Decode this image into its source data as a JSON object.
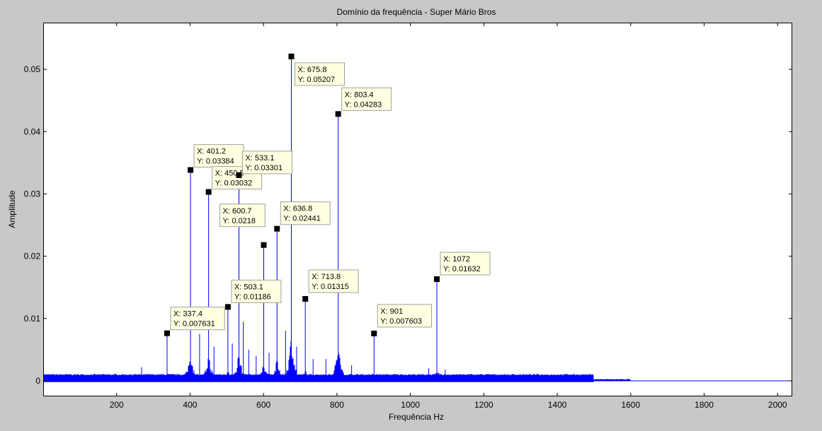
{
  "chart_data": {
    "type": "line",
    "title": "Domínio da frequência - Super Mário Bros",
    "xlabel": "Frequência Hz",
    "ylabel": "Amplitude",
    "xlim": [
      0,
      2040
    ],
    "ylim": [
      -0.0025,
      0.0575
    ],
    "x_ticks": [
      200,
      400,
      600,
      800,
      1000,
      1200,
      1400,
      1600,
      1800,
      2000
    ],
    "y_ticks": [
      0,
      0.01,
      0.02,
      0.03,
      0.04,
      0.05
    ],
    "y_tick_labels": [
      "0",
      "0.01",
      "0.02",
      "0.03",
      "0.04",
      "0.05"
    ],
    "grid": false,
    "series_color": "#0000ff",
    "background_color": "#ffffff",
    "figure_color": "#c8c8c8",
    "datatip_color": "#ffffe1",
    "peaks": [
      {
        "x": 337.4,
        "y": 0.007631,
        "xl": "X: 337.4",
        "yl": "Y: 0.007631"
      },
      {
        "x": 401.2,
        "y": 0.03384,
        "xl": "X: 401.2",
        "yl": "Y: 0.03384"
      },
      {
        "x": 450.5,
        "y": 0.03032,
        "xl": "X: 450.5",
        "yl": "Y: 0.03032"
      },
      {
        "x": 503.1,
        "y": 0.01186,
        "xl": "X: 503.1",
        "yl": "Y: 0.01186"
      },
      {
        "x": 533.1,
        "y": 0.03301,
        "xl": "X: 533.1",
        "yl": "Y: 0.03301"
      },
      {
        "x": 600.7,
        "y": 0.0218,
        "xl": "X: 600.7",
        "yl": "Y: 0.0218"
      },
      {
        "x": 636.8,
        "y": 0.02441,
        "xl": "X: 636.8",
        "yl": "Y: 0.02441"
      },
      {
        "x": 675.8,
        "y": 0.05207,
        "xl": "X: 675.8",
        "yl": "Y: 0.05207"
      },
      {
        "x": 713.8,
        "y": 0.01315,
        "xl": "X: 713.8",
        "yl": "Y: 0.01315"
      },
      {
        "x": 803.4,
        "y": 0.04283,
        "xl": "X: 803.4",
        "yl": "Y: 0.04283"
      },
      {
        "x": 901,
        "y": 0.007603,
        "xl": "X: 901",
        "yl": "Y: 0.007603"
      },
      {
        "x": 1072,
        "y": 0.01632,
        "xl": "X: 1072",
        "yl": "Y: 0.01632"
      }
    ],
    "minor_peaks": [
      {
        "x": 268,
        "y": 0.0022
      },
      {
        "x": 426,
        "y": 0.0075
      },
      {
        "x": 465,
        "y": 0.0055
      },
      {
        "x": 515,
        "y": 0.006
      },
      {
        "x": 545,
        "y": 0.0095
      },
      {
        "x": 560,
        "y": 0.005
      },
      {
        "x": 580,
        "y": 0.004
      },
      {
        "x": 615,
        "y": 0.0045
      },
      {
        "x": 660,
        "y": 0.008
      },
      {
        "x": 690,
        "y": 0.0055
      },
      {
        "x": 735,
        "y": 0.0035
      },
      {
        "x": 770,
        "y": 0.0035
      },
      {
        "x": 840,
        "y": 0.0025
      },
      {
        "x": 1050,
        "y": 0.002
      },
      {
        "x": 1095,
        "y": 0.0018
      }
    ]
  }
}
